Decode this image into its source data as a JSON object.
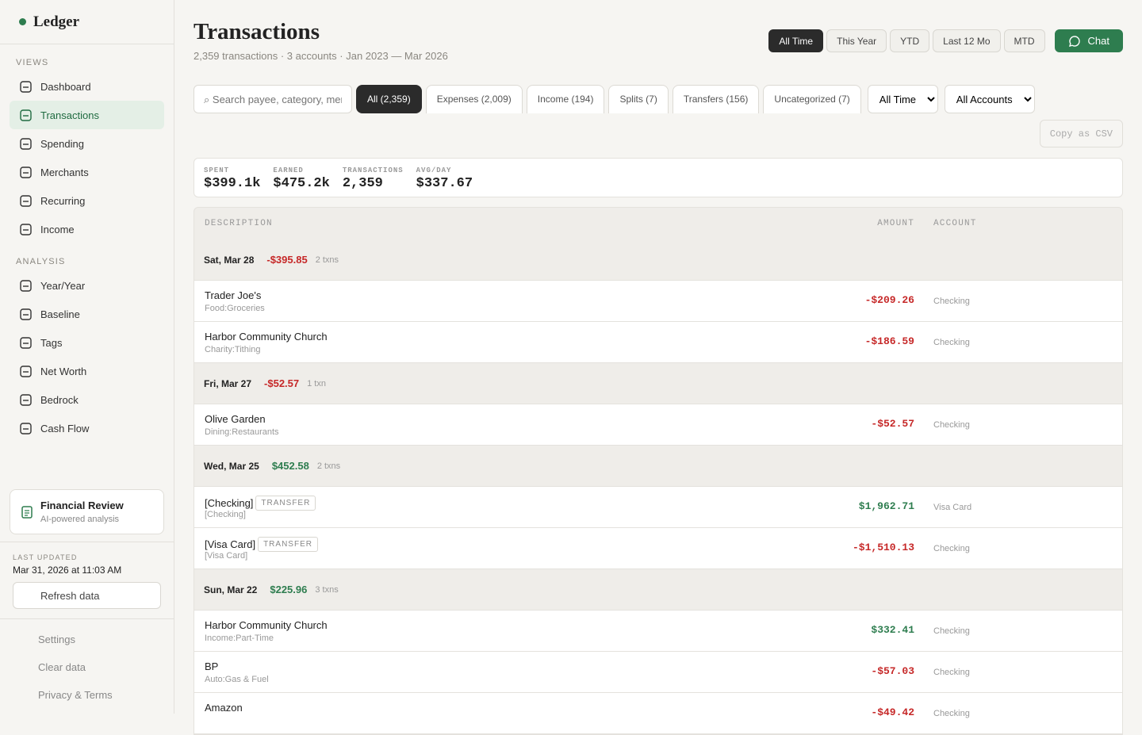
{
  "sidebar": {
    "brand": "Ledger",
    "sections": [
      {
        "label": "VIEWS",
        "items": [
          "Dashboard",
          "Transactions",
          "Spending",
          "Merchants",
          "Recurring",
          "Income"
        ]
      },
      {
        "label": "ANALYSIS",
        "items": [
          "Year/Year",
          "Baseline",
          "Tags",
          "Net Worth",
          "Bedrock",
          "Cash Flow"
        ]
      }
    ],
    "review": {
      "title": "Financial Review",
      "subtitle": "AI-powered analysis"
    },
    "updated": {
      "label": "LAST UPDATED",
      "value": "Mar 31, 2026 at 11:03 AM"
    },
    "refresh": "Refresh data",
    "footer": [
      "Settings",
      "Clear data",
      "Privacy & Terms"
    ]
  },
  "header": {
    "title": "Transactions",
    "subtitle": "2,359 transactions · 3 accounts · Jan 2023 — Mar 2026",
    "ranges": [
      "All Time",
      "This Year",
      "YTD",
      "Last 12 Mo",
      "MTD"
    ],
    "chat": "Chat"
  },
  "filters": {
    "search": "⌕ Search payee, category, mer",
    "tabs": [
      "All (2,359)",
      "Expenses (2,009)",
      "Income (194)",
      "Splits (7)",
      "Transfers (156)",
      "Uncategorized (7)"
    ],
    "period": "All Time",
    "accounts": "All Accounts",
    "copy": "Copy as CSV"
  },
  "stats": [
    {
      "label": "SPENT",
      "value": "$399.1k"
    },
    {
      "label": "EARNED",
      "value": "$475.2k"
    },
    {
      "label": "TRANSACTIONS",
      "value": "2,359"
    },
    {
      "label": "AVG/DAY",
      "value": "$337.67"
    }
  ],
  "table": {
    "columns": [
      "DESCRIPTION",
      "AMOUNT",
      "ACCOUNT"
    ],
    "groups": [
      {
        "date": "Sat, Mar 28",
        "total": "-$395.85",
        "count": "2 txns",
        "rows": [
          {
            "payee": "Trader Joe's",
            "category": "Food:Groceries",
            "amount": "-$209.26",
            "account": "Checking"
          },
          {
            "payee": "Harbor Community Church",
            "category": "Charity:Tithing",
            "amount": "-$186.59",
            "account": "Checking"
          }
        ]
      },
      {
        "date": "Fri, Mar 27",
        "total": "-$52.57",
        "count": "1 txn",
        "rows": [
          {
            "payee": "Olive Garden",
            "category": "Dining:Restaurants",
            "amount": "-$52.57",
            "account": "Checking"
          }
        ]
      },
      {
        "date": "Wed, Mar 25",
        "total": "$452.58",
        "count": "2 txns",
        "rows": [
          {
            "payee": "[Checking]",
            "tag": "TRANSFER",
            "category": "[Checking]",
            "amount": "$1,962.71",
            "account": "Visa Card"
          },
          {
            "payee": "[Visa Card]",
            "tag": "TRANSFER",
            "category": "[Visa Card]",
            "amount": "-$1,510.13",
            "account": "Checking"
          }
        ]
      },
      {
        "date": "Sun, Mar 22",
        "total": "$225.96",
        "count": "3 txns",
        "rows": [
          {
            "payee": "Harbor Community Church",
            "category": "Income:Part-Time",
            "amount": "$332.41",
            "account": "Checking"
          },
          {
            "payee": "BP",
            "category": "Auto:Gas & Fuel",
            "amount": "-$57.03",
            "account": "Checking"
          },
          {
            "payee": "Amazon",
            "amount": "-$49.42",
            "account": "Checking"
          }
        ]
      }
    ]
  }
}
